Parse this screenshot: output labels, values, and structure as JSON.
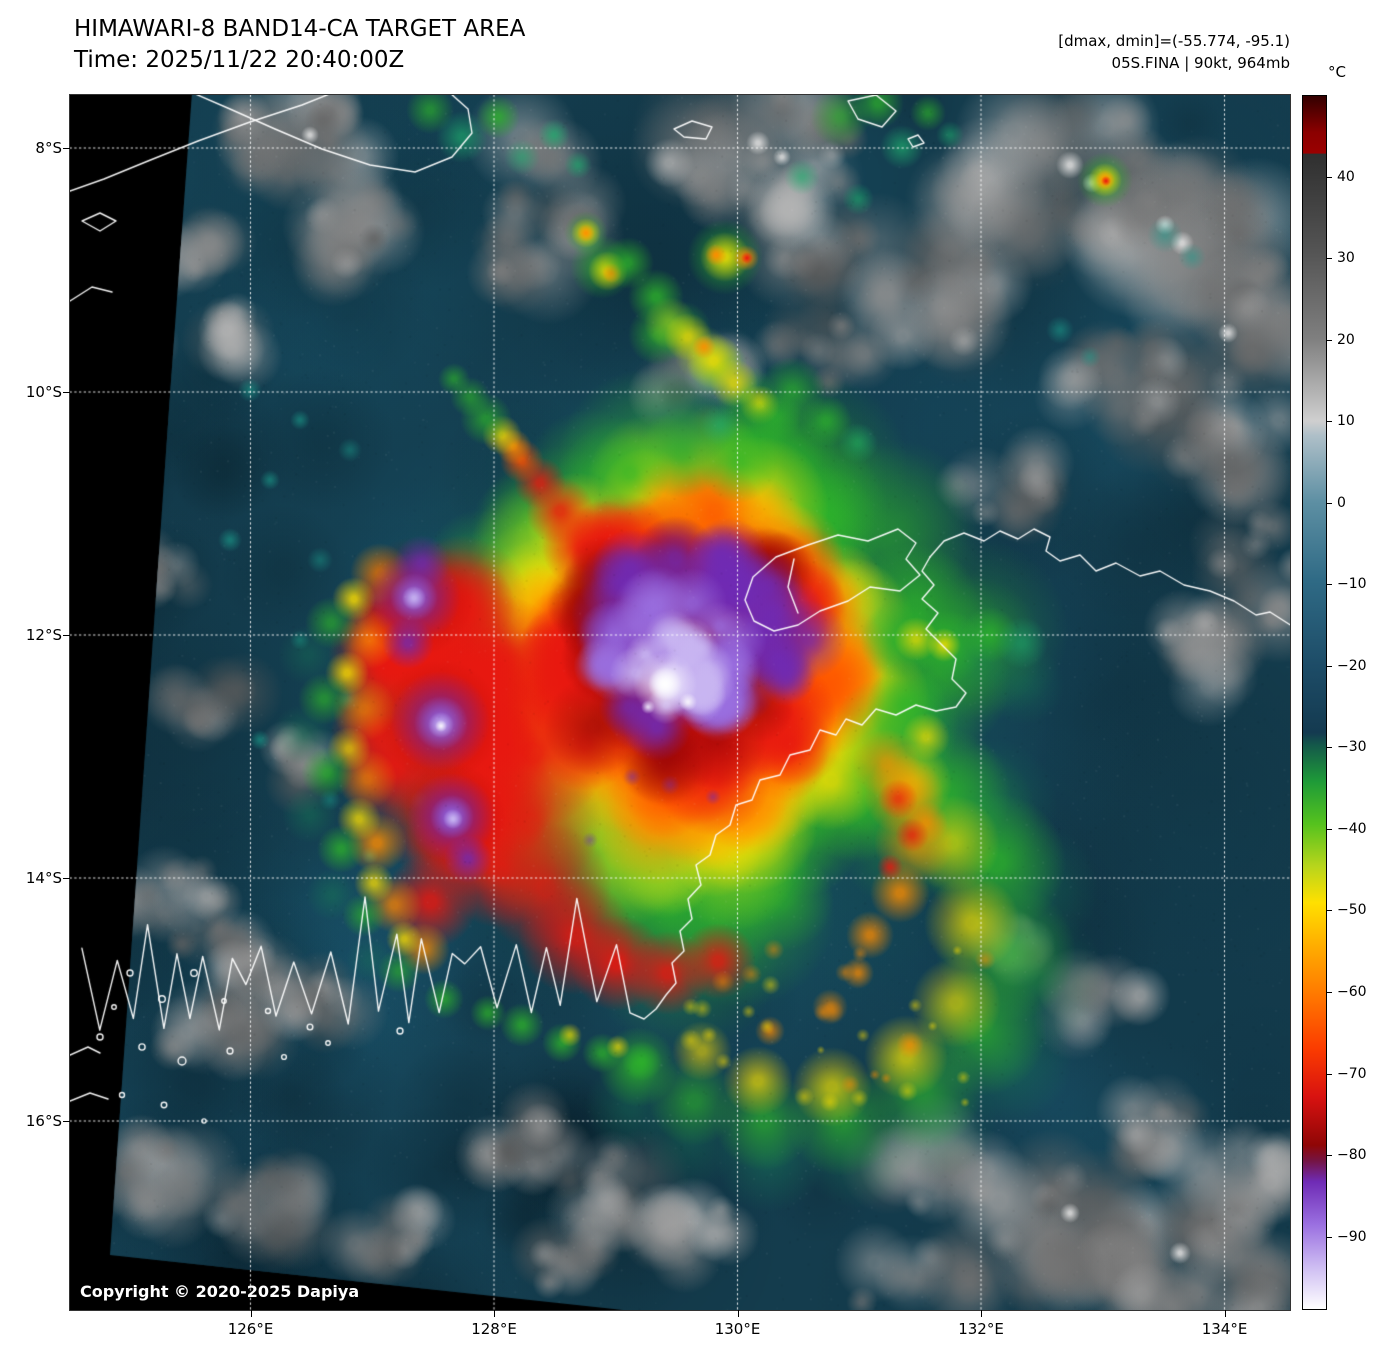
{
  "header": {
    "title": "HIMAWARI-8 BAND14-CA TARGET AREA",
    "time": "Time: 2025/11/22 20:40:00Z",
    "dmax_dmin": "[dmax, dmin]=(-55.774, -95.1)",
    "storm": "05S.FINA | 90kt, 964mb"
  },
  "axes": {
    "lat_labels": [
      "8°S",
      "10°S",
      "12°S",
      "14°S",
      "16°S"
    ],
    "lon_labels": [
      "126°E",
      "128°E",
      "130°E",
      "132°E",
      "134°E"
    ]
  },
  "colorbar": {
    "unit": "°C",
    "tick_values": [
      40,
      30,
      20,
      10,
      0,
      -10,
      -20,
      -30,
      -40,
      -50,
      -60,
      -70,
      -80,
      -90
    ],
    "gradient": [
      [
        0.0,
        "#330000"
      ],
      [
        0.03,
        "#8b0000"
      ],
      [
        0.047,
        "#9a0000"
      ],
      [
        0.048,
        "#2f2f2f"
      ],
      [
        0.13,
        "#555555"
      ],
      [
        0.2,
        "#7f7f7f"
      ],
      [
        0.268,
        "#cfcfcf"
      ],
      [
        0.28,
        "#aebfc8"
      ],
      [
        0.335,
        "#5d8fa3"
      ],
      [
        0.4,
        "#2f6a85"
      ],
      [
        0.47,
        "#1d4c67"
      ],
      [
        0.525,
        "#143a50"
      ],
      [
        0.535,
        "#14584a"
      ],
      [
        0.565,
        "#1e9a38"
      ],
      [
        0.6,
        "#55c21e"
      ],
      [
        0.635,
        "#b8d51c"
      ],
      [
        0.665,
        "#ffe000"
      ],
      [
        0.7,
        "#ffae00"
      ],
      [
        0.745,
        "#ff7300"
      ],
      [
        0.785,
        "#fb3c00"
      ],
      [
        0.825,
        "#d81210"
      ],
      [
        0.865,
        "#8f0606"
      ],
      [
        0.878,
        "#741444"
      ],
      [
        0.895,
        "#6f2bb5"
      ],
      [
        0.93,
        "#9a6fe0"
      ],
      [
        0.965,
        "#cdbcf2"
      ],
      [
        1.0,
        "#ffffff"
      ]
    ]
  },
  "footer": {
    "copyright": "Copyright © 2020-2025 Dapiya"
  },
  "palette": {
    "background": "#000000",
    "ocean": "#143c4d",
    "ocean_dark": "#0b2531",
    "ocean_light": "#1c5d78",
    "teal": "#177a56",
    "cyan_green": "#1fae6e",
    "cyan_teal": "#1b9a8a",
    "green": "#2eb52a",
    "yellow_green": "#9ccf1e",
    "yellow": "#ffe000",
    "orange": "#ff8c00",
    "orange_red": "#ff5000",
    "red": "#e81810",
    "dark_red": "#9c0606",
    "purple": "#6f2bb5",
    "light_purple": "#9a6fe0",
    "lavender": "#c9b6f2",
    "white_core": "#f6f3ff",
    "maroon": "#8b0000",
    "coastline": "#ffffff",
    "grid": "#ffffff"
  }
}
